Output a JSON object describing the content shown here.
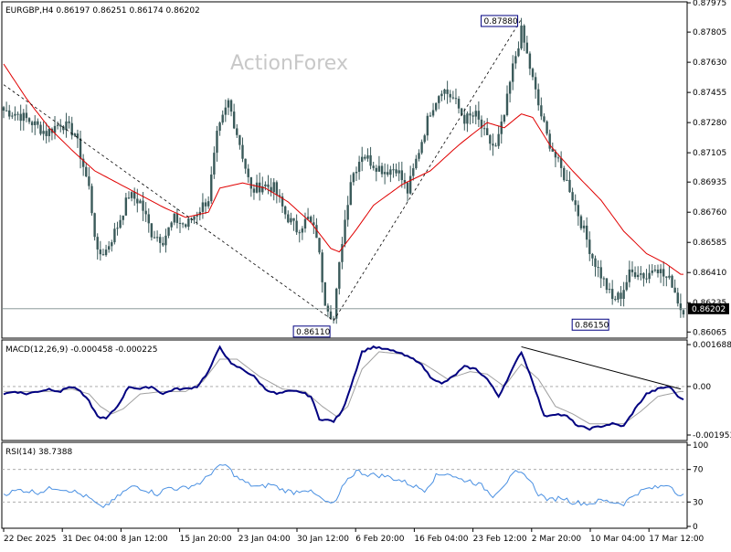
{
  "header": {
    "symbol_line": "EURGBP,H4  0.86197 0.86251 0.86174 0.86202",
    "watermark": "ActionForex"
  },
  "colors": {
    "candle": "#3a5a5a",
    "ma": "#e00000",
    "macd": "#000080",
    "signal": "#a0a0a0",
    "rsi": "#4a90e2",
    "grid": "#a0a0a0",
    "label_bg": "#000000"
  },
  "chart_data": [
    {
      "type": "candlestick",
      "title": "EURGBP,H4",
      "ohlc_last": {
        "open": "0.86197",
        "high": "0.86251",
        "low": "0.86174",
        "close": "0.86202"
      },
      "ylim": [
        0.8604,
        0.8797
      ],
      "yticks": [
        "0.87975",
        "0.87805",
        "0.87630",
        "0.87455",
        "0.87280",
        "0.87105",
        "0.86935",
        "0.86760",
        "0.86585",
        "0.86410",
        "0.86235",
        "0.86065"
      ],
      "last_price_label": "0.86202",
      "x_ticks": [
        "22 Dec 2025",
        "31 Dec 04:00",
        "8 Jan 12:00",
        "15 Jan 20:00",
        "23 Jan 04:00",
        "30 Jan 12:00",
        "6 Feb 20:00",
        "16 Feb 04:00",
        "23 Feb 12:00",
        "2 Mar 20:00",
        "10 Mar 04:00",
        "17 Mar 12:00"
      ],
      "closes_anchor": [
        [
          0,
          0.8735
        ],
        [
          5,
          0.8733
        ],
        [
          10,
          0.8728
        ],
        [
          15,
          0.8722
        ],
        [
          20,
          0.8728
        ],
        [
          25,
          0.8722
        ],
        [
          30,
          0.869
        ],
        [
          33,
          0.8651
        ],
        [
          36,
          0.8654
        ],
        [
          40,
          0.8668
        ],
        [
          44,
          0.8686
        ],
        [
          48,
          0.8682
        ],
        [
          52,
          0.8664
        ],
        [
          56,
          0.866
        ],
        [
          60,
          0.8672
        ],
        [
          64,
          0.8668
        ],
        [
          68,
          0.8676
        ],
        [
          72,
          0.8684
        ],
        [
          75,
          0.872
        ],
        [
          79,
          0.874
        ],
        [
          83,
          0.8716
        ],
        [
          87,
          0.8688
        ],
        [
          91,
          0.8692
        ],
        [
          95,
          0.869
        ],
        [
          99,
          0.8675
        ],
        [
          103,
          0.8666
        ],
        [
          107,
          0.8672
        ],
        [
          110,
          0.8663
        ],
        [
          113,
          0.8625
        ],
        [
          116,
          0.8614
        ],
        [
          119,
          0.866
        ],
        [
          122,
          0.8695
        ],
        [
          126,
          0.871
        ],
        [
          130,
          0.8704
        ],
        [
          134,
          0.87
        ],
        [
          138,
          0.8702
        ],
        [
          142,
          0.8688
        ],
        [
          146,
          0.8712
        ],
        [
          150,
          0.8735
        ],
        [
          154,
          0.8748
        ],
        [
          158,
          0.8742
        ],
        [
          162,
          0.873
        ],
        [
          166,
          0.8732
        ],
        [
          170,
          0.8718
        ],
        [
          173,
          0.8713
        ],
        [
          176,
          0.8732
        ],
        [
          179,
          0.876
        ],
        [
          182,
          0.8781
        ],
        [
          185,
          0.876
        ],
        [
          188,
          0.8738
        ],
        [
          191,
          0.872
        ],
        [
          195,
          0.8704
        ],
        [
          199,
          0.869
        ],
        [
          203,
          0.867
        ],
        [
          207,
          0.865
        ],
        [
          211,
          0.8636
        ],
        [
          214,
          0.8625
        ],
        [
          217,
          0.8628
        ],
        [
          220,
          0.864
        ],
        [
          223,
          0.8642
        ],
        [
          226,
          0.8638
        ],
        [
          229,
          0.8646
        ],
        [
          232,
          0.8639
        ],
        [
          235,
          0.8635
        ],
        [
          238,
          0.862
        ]
      ],
      "ma_anchor": [
        [
          0,
          0.8762
        ],
        [
          8,
          0.8742
        ],
        [
          16,
          0.8725
        ],
        [
          24,
          0.8712
        ],
        [
          32,
          0.87
        ],
        [
          40,
          0.8693
        ],
        [
          48,
          0.8686
        ],
        [
          56,
          0.8679
        ],
        [
          64,
          0.8673
        ],
        [
          72,
          0.8676
        ],
        [
          76,
          0.869
        ],
        [
          84,
          0.8693
        ],
        [
          92,
          0.869
        ],
        [
          100,
          0.8682
        ],
        [
          108,
          0.867
        ],
        [
          115,
          0.8655
        ],
        [
          118,
          0.8653
        ],
        [
          124,
          0.8666
        ],
        [
          130,
          0.868
        ],
        [
          140,
          0.8692
        ],
        [
          150,
          0.87
        ],
        [
          160,
          0.8715
        ],
        [
          170,
          0.8728
        ],
        [
          176,
          0.8725
        ],
        [
          182,
          0.8733
        ],
        [
          186,
          0.8731
        ],
        [
          192,
          0.8715
        ],
        [
          200,
          0.87
        ],
        [
          210,
          0.8683
        ],
        [
          218,
          0.8665
        ],
        [
          226,
          0.8652
        ],
        [
          233,
          0.8646
        ],
        [
          238,
          0.864
        ]
      ],
      "trend_lines": [
        [
          [
            0,
            0.875
          ],
          [
            116,
            0.8613
          ]
        ],
        [
          [
            116,
            0.8613
          ],
          [
            182,
            0.8788
          ]
        ]
      ],
      "price_labels": [
        {
          "text": "0.87880",
          "x": 182,
          "y": 0.8788
        },
        {
          "text": "0.86110",
          "x": 116,
          "y": 0.8611
        },
        {
          "text": "0.86150",
          "x": 214,
          "y": 0.8615
        }
      ],
      "horizontal_line": 0.862
    },
    {
      "type": "line",
      "title": "MACD(12,26,9) -0.000458 -0.000225",
      "ylim": [
        -0.0021,
        0.0018
      ],
      "yticks": [
        "0.001688",
        "0.00",
        "-0.001953"
      ],
      "macd_anchor": [
        [
          0,
          -0.0003
        ],
        [
          4,
          -0.0002
        ],
        [
          8,
          -0.0003
        ],
        [
          12,
          -0.0002
        ],
        [
          16,
          -0.0001
        ],
        [
          20,
          -0.0002
        ],
        [
          23,
          0.0
        ],
        [
          26,
          -0.0001
        ],
        [
          30,
          -0.0006
        ],
        [
          33,
          -0.0012
        ],
        [
          36,
          -0.0013
        ],
        [
          40,
          -0.0008
        ],
        [
          44,
          0.0
        ],
        [
          48,
          -0.0001
        ],
        [
          52,
          0.0
        ],
        [
          56,
          -0.0003
        ],
        [
          60,
          -0.0001
        ],
        [
          64,
          -0.0001
        ],
        [
          68,
          0.0
        ],
        [
          72,
          0.0006
        ],
        [
          76,
          0.0016
        ],
        [
          80,
          0.0009
        ],
        [
          84,
          0.0007
        ],
        [
          88,
          0.0004
        ],
        [
          92,
          -0.0001
        ],
        [
          96,
          -0.0003
        ],
        [
          100,
          -0.0002
        ],
        [
          104,
          -0.0002
        ],
        [
          108,
          -0.0004
        ],
        [
          111,
          -0.0013
        ],
        [
          116,
          -0.0014
        ],
        [
          119,
          -0.001
        ],
        [
          122,
          0.0
        ],
        [
          126,
          0.0014
        ],
        [
          130,
          0.0016
        ],
        [
          134,
          0.0015
        ],
        [
          138,
          0.0014
        ],
        [
          142,
          0.0012
        ],
        [
          146,
          0.001
        ],
        [
          150,
          0.0004
        ],
        [
          154,
          0.0001
        ],
        [
          158,
          0.0004
        ],
        [
          162,
          0.0008
        ],
        [
          166,
          0.0007
        ],
        [
          170,
          0.0003
        ],
        [
          174,
          -0.0004
        ],
        [
          178,
          0.0005
        ],
        [
          182,
          0.0014
        ],
        [
          186,
          0.0002
        ],
        [
          190,
          -0.0012
        ],
        [
          194,
          -0.0011
        ],
        [
          198,
          -0.0012
        ],
        [
          202,
          -0.0016
        ],
        [
          206,
          -0.0017
        ],
        [
          210,
          -0.0016
        ],
        [
          214,
          -0.0015
        ],
        [
          218,
          -0.0016
        ],
        [
          222,
          -0.0009
        ],
        [
          226,
          -0.0003
        ],
        [
          230,
          -0.0001
        ],
        [
          234,
          0.0
        ],
        [
          238,
          -0.0005
        ]
      ],
      "signal_anchor": [
        [
          0,
          -0.0002
        ],
        [
          8,
          -0.0002
        ],
        [
          16,
          -0.0002
        ],
        [
          24,
          -0.0001
        ],
        [
          30,
          -0.0003
        ],
        [
          34,
          -0.0008
        ],
        [
          38,
          -0.0011
        ],
        [
          42,
          -0.0009
        ],
        [
          48,
          -0.0003
        ],
        [
          56,
          -0.0002
        ],
        [
          64,
          -0.0002
        ],
        [
          70,
          0.0002
        ],
        [
          76,
          0.0011
        ],
        [
          82,
          0.0011
        ],
        [
          90,
          0.0004
        ],
        [
          98,
          -0.0001
        ],
        [
          106,
          -0.0002
        ],
        [
          112,
          -0.0008
        ],
        [
          117,
          -0.0012
        ],
        [
          121,
          -0.0008
        ],
        [
          126,
          0.0007
        ],
        [
          132,
          0.0014
        ],
        [
          140,
          0.0013
        ],
        [
          148,
          0.0009
        ],
        [
          156,
          0.0003
        ],
        [
          164,
          0.0006
        ],
        [
          170,
          0.0005
        ],
        [
          176,
          0.0
        ],
        [
          182,
          0.0009
        ],
        [
          188,
          0.0003
        ],
        [
          194,
          -0.0008
        ],
        [
          200,
          -0.0011
        ],
        [
          206,
          -0.0015
        ],
        [
          212,
          -0.0015
        ],
        [
          218,
          -0.0015
        ],
        [
          224,
          -0.001
        ],
        [
          230,
          -0.0004
        ],
        [
          238,
          -0.0002
        ]
      ],
      "trend_line": [
        [
          182,
          0.0016
        ],
        [
          238,
          -0.0001
        ]
      ]
    },
    {
      "type": "line",
      "title": "RSI(14) 38.7388",
      "ylim": [
        0,
        100
      ],
      "yticks": [
        "100",
        "70",
        "30",
        "0"
      ],
      "levels": [
        70,
        30
      ],
      "rsi_anchor": [
        [
          0,
          40
        ],
        [
          6,
          45
        ],
        [
          12,
          42
        ],
        [
          18,
          48
        ],
        [
          24,
          44
        ],
        [
          30,
          35
        ],
        [
          34,
          23
        ],
        [
          38,
          30
        ],
        [
          42,
          42
        ],
        [
          46,
          50
        ],
        [
          50,
          45
        ],
        [
          54,
          40
        ],
        [
          58,
          48
        ],
        [
          62,
          46
        ],
        [
          66,
          50
        ],
        [
          70,
          55
        ],
        [
          74,
          70
        ],
        [
          78,
          76
        ],
        [
          82,
          60
        ],
        [
          86,
          52
        ],
        [
          90,
          48
        ],
        [
          94,
          52
        ],
        [
          98,
          45
        ],
        [
          102,
          42
        ],
        [
          106,
          46
        ],
        [
          110,
          38
        ],
        [
          114,
          28
        ],
        [
          117,
          30
        ],
        [
          120,
          55
        ],
        [
          124,
          68
        ],
        [
          128,
          64
        ],
        [
          134,
          62
        ],
        [
          140,
          56
        ],
        [
          144,
          50
        ],
        [
          148,
          45
        ],
        [
          152,
          62
        ],
        [
          156,
          66
        ],
        [
          160,
          58
        ],
        [
          164,
          56
        ],
        [
          168,
          50
        ],
        [
          172,
          38
        ],
        [
          176,
          52
        ],
        [
          180,
          66
        ],
        [
          184,
          62
        ],
        [
          188,
          40
        ],
        [
          192,
          32
        ],
        [
          196,
          36
        ],
        [
          200,
          30
        ],
        [
          206,
          28
        ],
        [
          210,
          32
        ],
        [
          214,
          30
        ],
        [
          218,
          28
        ],
        [
          222,
          40
        ],
        [
          226,
          46
        ],
        [
          230,
          48
        ],
        [
          234,
          52
        ],
        [
          236,
          44
        ],
        [
          238,
          38
        ]
      ]
    }
  ]
}
